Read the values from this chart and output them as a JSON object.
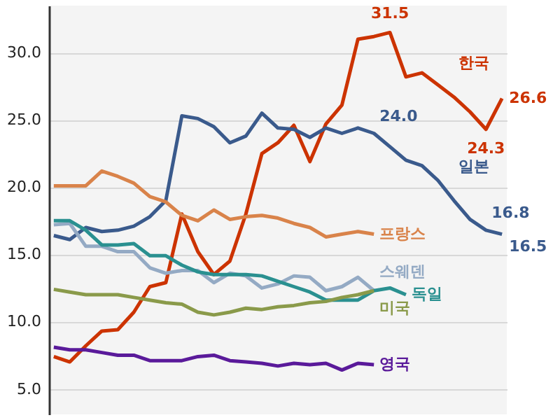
{
  "chart_data": {
    "type": "line",
    "categories": [
      null,
      null,
      null,
      null,
      null,
      null,
      null,
      null,
      null,
      null,
      null,
      null,
      null,
      null,
      null,
      null,
      null,
      null,
      null,
      null,
      null,
      null,
      null,
      null,
      null,
      null,
      null,
      null,
      null
    ],
    "series": [
      {
        "name": "한국",
        "color": "#cc3300",
        "values": [
          7.4,
          7.0,
          8.2,
          9.3,
          9.4,
          10.7,
          12.6,
          12.9,
          18.0,
          15.2,
          13.5,
          14.5,
          18.0,
          22.5,
          23.3,
          24.6,
          21.9,
          24.7,
          26.1,
          31.0,
          31.2,
          31.5,
          28.2,
          28.5,
          27.6,
          26.7,
          25.6,
          24.3,
          26.6
        ],
        "value_labels": [
          null,
          null,
          null,
          null,
          null,
          null,
          null,
          null,
          null,
          null,
          null,
          null,
          null,
          null,
          null,
          null,
          null,
          null,
          null,
          null,
          null,
          "31.5",
          null,
          null,
          null,
          null,
          null,
          "24.3",
          "26.6"
        ]
      },
      {
        "name": "일본",
        "color": "#3a5a8c",
        "values": [
          16.4,
          16.1,
          17.0,
          16.7,
          16.8,
          17.1,
          17.8,
          19.0,
          25.3,
          25.1,
          24.5,
          23.3,
          23.8,
          25.5,
          24.4,
          24.3,
          23.7,
          24.4,
          24.0,
          24.4,
          24.0,
          23.0,
          22.0,
          21.6,
          20.5,
          19.0,
          17.6,
          16.8,
          16.5
        ],
        "value_labels": [
          null,
          null,
          null,
          null,
          null,
          null,
          null,
          null,
          null,
          null,
          null,
          null,
          null,
          null,
          null,
          null,
          null,
          null,
          null,
          null,
          "24.0",
          null,
          null,
          null,
          null,
          null,
          null,
          "16.8",
          "16.5"
        ]
      },
      {
        "name": "프랑스",
        "color": "#d9834a",
        "values": [
          20.1,
          20.1,
          20.1,
          21.2,
          20.8,
          20.3,
          19.3,
          18.9,
          17.9,
          17.5,
          18.3,
          17.6,
          17.8,
          17.9,
          17.7,
          17.3,
          17.0,
          16.3,
          16.5,
          16.7,
          16.5,
          null,
          null,
          null,
          null,
          null,
          null,
          null,
          null
        ]
      },
      {
        "name": "스웨덴",
        "color": "#94aac4",
        "values": [
          17.2,
          17.3,
          15.6,
          15.6,
          15.2,
          15.2,
          14.0,
          13.6,
          13.8,
          13.8,
          12.9,
          13.6,
          13.4,
          12.5,
          12.8,
          13.4,
          13.3,
          12.3,
          12.6,
          13.3,
          12.3,
          null,
          null,
          null,
          null,
          null,
          null,
          null,
          null
        ]
      },
      {
        "name": "독일",
        "color": "#2a9090",
        "values": [
          17.5,
          17.5,
          16.8,
          15.7,
          15.7,
          15.8,
          14.9,
          14.9,
          14.2,
          13.7,
          13.5,
          13.5,
          13.5,
          13.4,
          13.0,
          12.6,
          12.2,
          11.6,
          11.6,
          11.6,
          12.3,
          12.5,
          12.0,
          null,
          null,
          null,
          null,
          null,
          null
        ]
      },
      {
        "name": "미국",
        "color": "#8a9a4a",
        "values": [
          12.4,
          12.2,
          12.0,
          12.0,
          12.0,
          11.8,
          11.6,
          11.4,
          11.3,
          10.7,
          10.5,
          10.7,
          11.0,
          10.9,
          11.1,
          11.2,
          11.4,
          11.5,
          11.8,
          12.0,
          12.3,
          null,
          null,
          null,
          null,
          null,
          null,
          null,
          null
        ]
      },
      {
        "name": "영국",
        "color": "#5a1a9a",
        "values": [
          8.1,
          7.9,
          7.9,
          7.7,
          7.5,
          7.5,
          7.1,
          7.1,
          7.1,
          7.4,
          7.5,
          7.1,
          7.0,
          6.9,
          6.7,
          6.9,
          6.8,
          6.9,
          6.4,
          6.9,
          6.8,
          null,
          null,
          null,
          null,
          null,
          null,
          null,
          null
        ]
      }
    ],
    "ylim": [
      3.1,
      33.5
    ],
    "yticks": [
      {
        "value": 5,
        "label": "5.0"
      },
      {
        "value": 10,
        "label": "10.0"
      },
      {
        "value": 15,
        "label": "15.0"
      },
      {
        "value": 20,
        "label": "20.0"
      },
      {
        "value": 25,
        "label": "25.0"
      },
      {
        "value": 30,
        "label": "30.0"
      }
    ],
    "grid": "y",
    "legend": false,
    "line_style": "solid",
    "marker": "none"
  }
}
